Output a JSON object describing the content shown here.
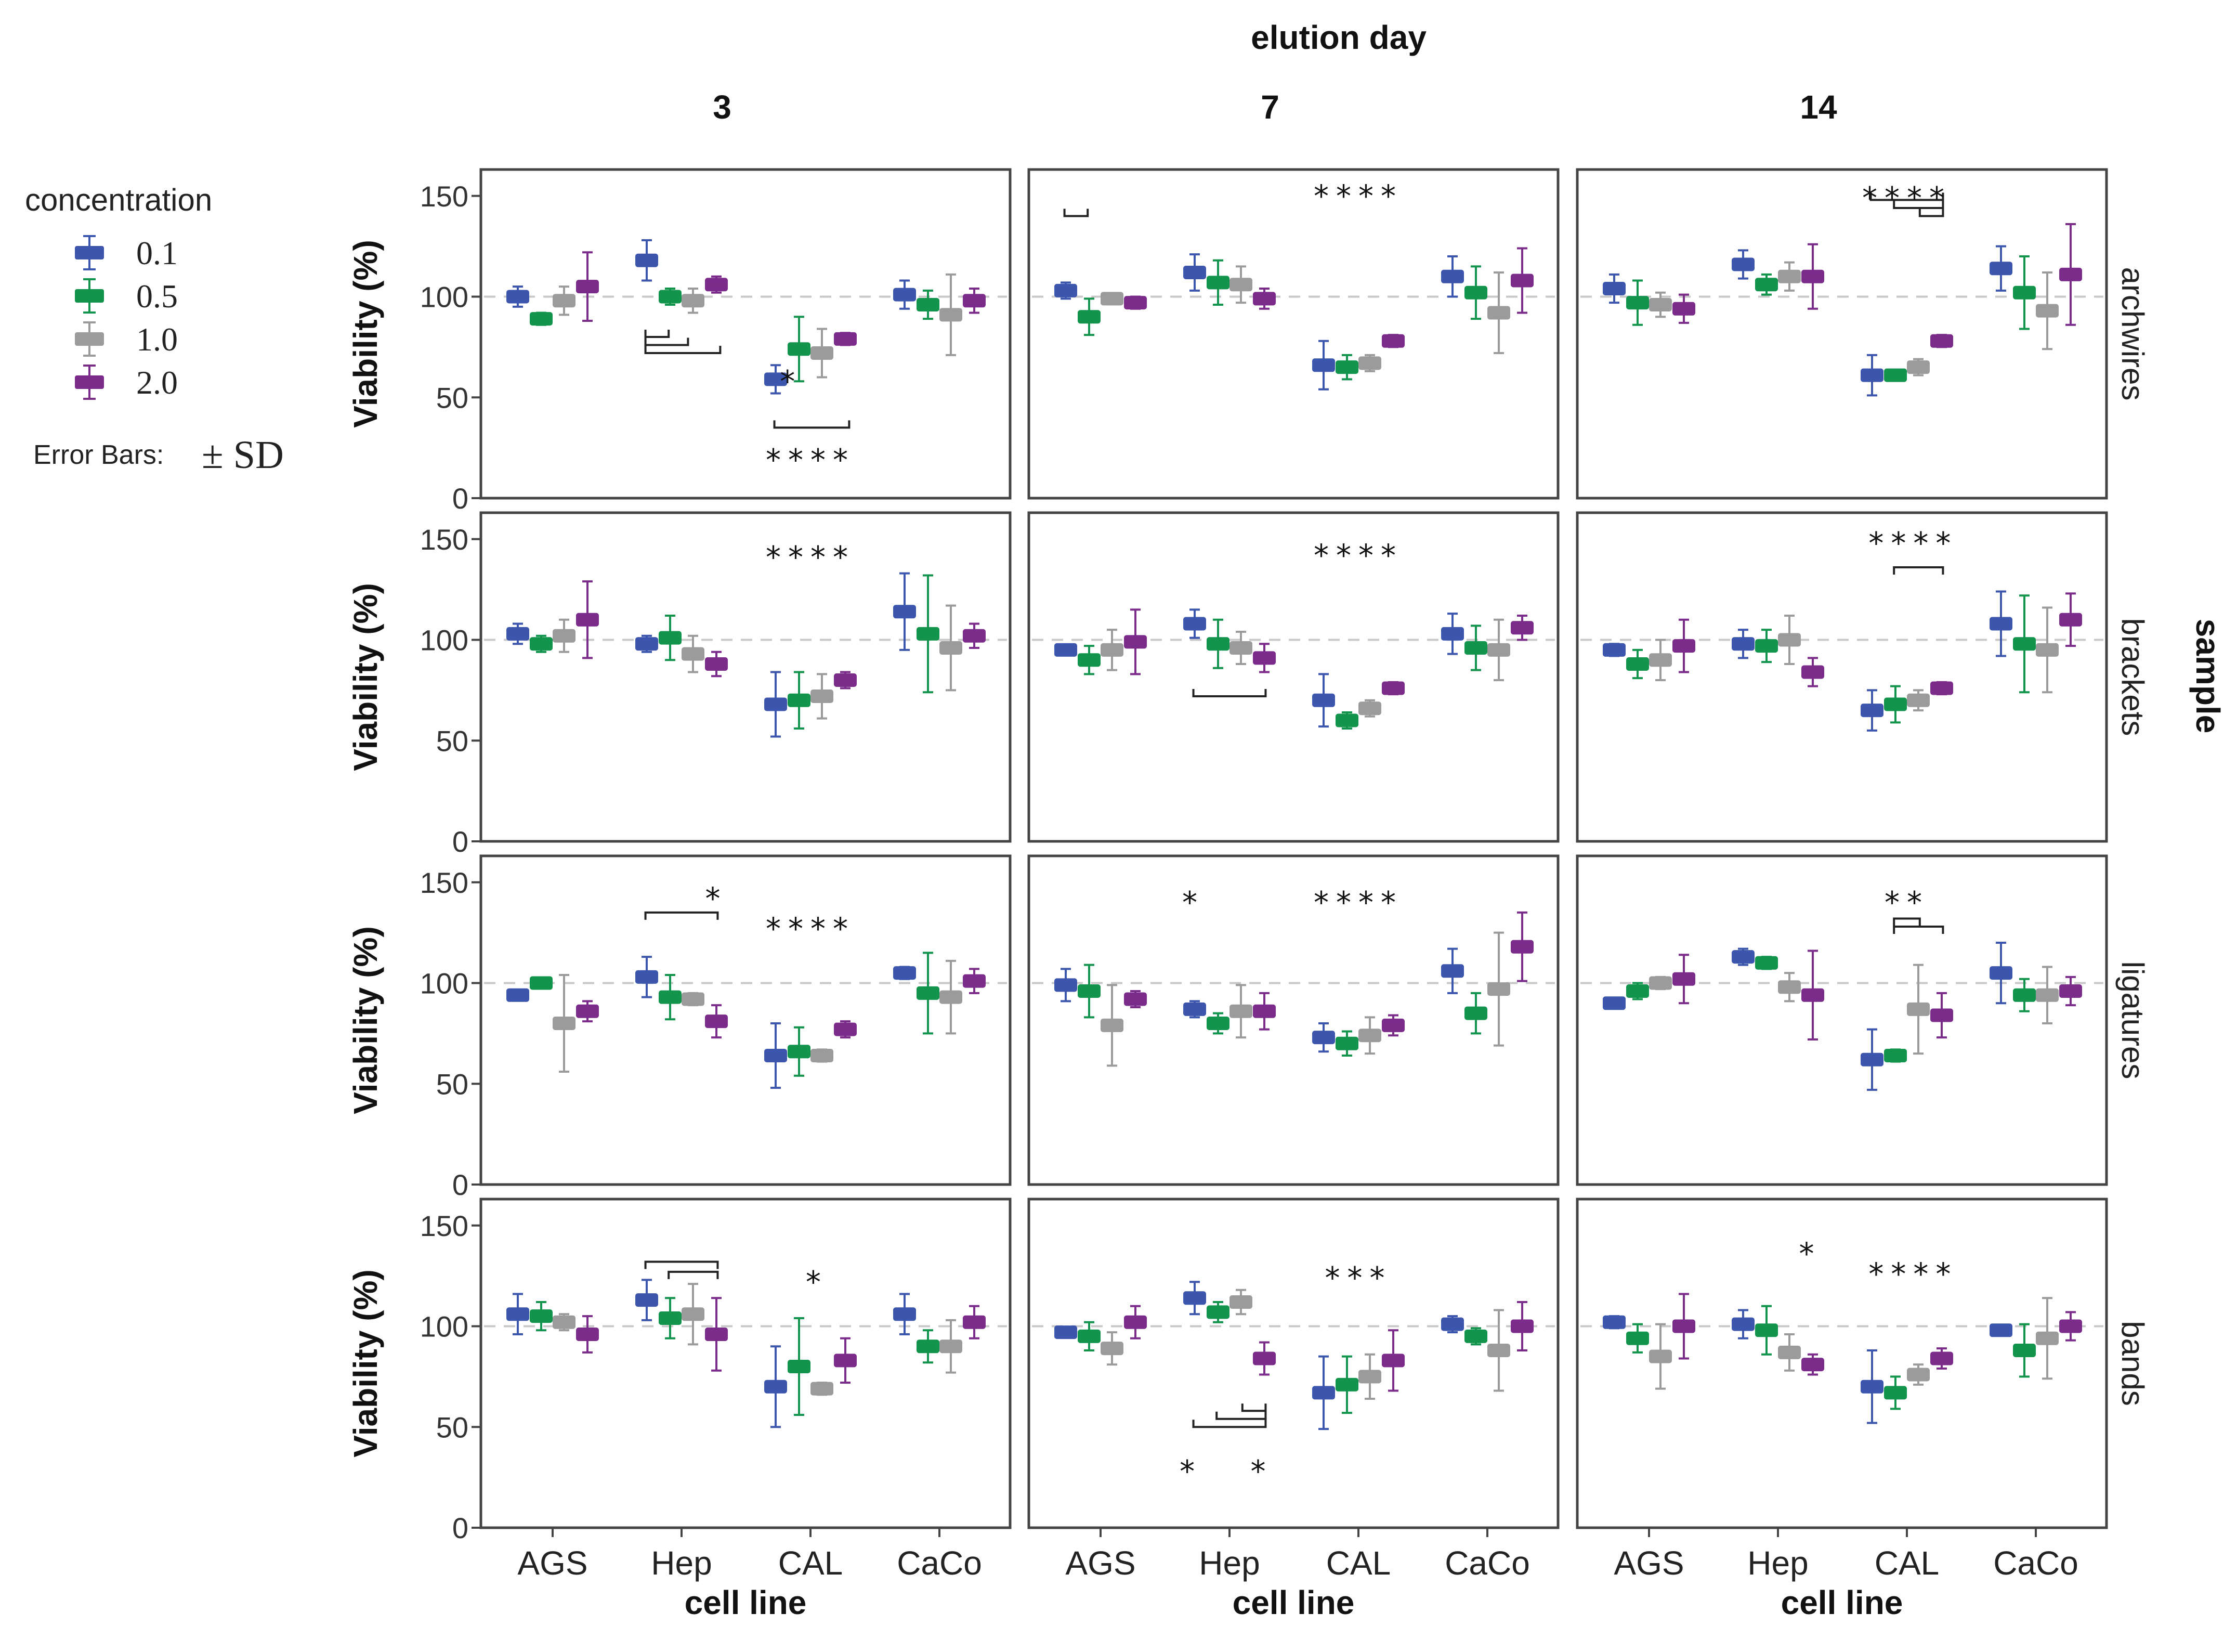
{
  "chart_data": {
    "type": "bar",
    "column_facet_title": "elution day",
    "row_facet_title": "sample",
    "columns": [
      "3",
      "7",
      "14"
    ],
    "rows": [
      "archwires",
      "brackets",
      "ligatures",
      "bands"
    ],
    "categories": [
      "AGS",
      "Hep",
      "CAL",
      "CaCo"
    ],
    "xlabel": "cell line",
    "ylabel": "Viability (%)",
    "ylim": [
      0,
      160
    ],
    "yticks": [
      0,
      50,
      100,
      150
    ],
    "reference_line": 100,
    "legend": {
      "title": "concentration",
      "placement": "left",
      "error_bars_label": "Error Bars:",
      "error_bars_value": "± SD",
      "series_colors": [
        "#3d56ad",
        "#12944d",
        "#9b9b9b",
        "#7b2b8a"
      ]
    },
    "series": [
      {
        "name": "0.1",
        "panels": [
          [
            [
              100,
              5
            ],
            [
              118,
              10
            ],
            [
              59,
              7
            ],
            [
              101,
              7
            ]
          ],
          [
            [
              103,
              4
            ],
            [
              112,
              9
            ],
            [
              66,
              12
            ],
            [
              110,
              10
            ]
          ],
          [
            [
              104,
              7
            ],
            [
              116,
              7
            ],
            [
              61,
              10
            ],
            [
              114,
              11
            ]
          ],
          [
            [
              103,
              5
            ],
            [
              98,
              4
            ],
            [
              68,
              16
            ],
            [
              114,
              19
            ]
          ],
          [
            [
              95,
              2
            ],
            [
              108,
              7
            ],
            [
              70,
              13
            ],
            [
              103,
              10
            ]
          ],
          [
            [
              95,
              3
            ],
            [
              98,
              7
            ],
            [
              65,
              10
            ],
            [
              108,
              16
            ]
          ],
          [
            [
              94,
              2
            ],
            [
              103,
              10
            ],
            [
              64,
              16
            ],
            [
              105,
              3
            ]
          ],
          [
            [
              99,
              8
            ],
            [
              87,
              4
            ],
            [
              73,
              7
            ],
            [
              106,
              11
            ]
          ],
          [
            [
              90,
              2
            ],
            [
              113,
              4
            ],
            [
              62,
              15
            ],
            [
              105,
              15
            ]
          ],
          [
            [
              106,
              10
            ],
            [
              113,
              10
            ],
            [
              70,
              20
            ],
            [
              106,
              10
            ]
          ],
          [
            [
              97,
              2
            ],
            [
              114,
              8
            ],
            [
              67,
              18
            ],
            [
              101,
              4
            ]
          ],
          [
            [
              102,
              3
            ],
            [
              101,
              7
            ],
            [
              70,
              18
            ],
            [
              98,
              2
            ]
          ]
        ]
      },
      {
        "name": "0.5",
        "panels": [
          [
            [
              89,
              3
            ],
            [
              100,
              4
            ],
            [
              74,
              16
            ],
            [
              96,
              7
            ]
          ],
          [
            [
              90,
              9
            ],
            [
              107,
              11
            ],
            [
              65,
              6
            ],
            [
              102,
              13
            ]
          ],
          [
            [
              97,
              11
            ],
            [
              106,
              5
            ],
            [
              61,
              2
            ],
            [
              102,
              18
            ]
          ],
          [
            [
              98,
              4
            ],
            [
              101,
              11
            ],
            [
              70,
              14
            ],
            [
              103,
              29
            ]
          ],
          [
            [
              90,
              7
            ],
            [
              98,
              12
            ],
            [
              60,
              4
            ],
            [
              96,
              11
            ]
          ],
          [
            [
              88,
              7
            ],
            [
              97,
              8
            ],
            [
              68,
              9
            ],
            [
              98,
              24
            ]
          ],
          [
            [
              100,
              2
            ],
            [
              93,
              11
            ],
            [
              66,
              12
            ],
            [
              95,
              20
            ]
          ],
          [
            [
              96,
              13
            ],
            [
              80,
              5
            ],
            [
              70,
              6
            ],
            [
              85,
              10
            ]
          ],
          [
            [
              96,
              4
            ],
            [
              110,
              3
            ],
            [
              64,
              3
            ],
            [
              94,
              8
            ]
          ],
          [
            [
              105,
              7
            ],
            [
              104,
              10
            ],
            [
              80,
              24
            ],
            [
              90,
              8
            ]
          ],
          [
            [
              95,
              7
            ],
            [
              107,
              5
            ],
            [
              71,
              14
            ],
            [
              95,
              4
            ]
          ],
          [
            [
              94,
              7
            ],
            [
              98,
              12
            ],
            [
              67,
              8
            ],
            [
              88,
              13
            ]
          ]
        ]
      },
      {
        "name": "1.0",
        "panels": [
          [
            [
              98,
              7
            ],
            [
              98,
              6
            ],
            [
              72,
              12
            ],
            [
              91,
              20
            ]
          ],
          [
            [
              99,
              2
            ],
            [
              106,
              9
            ],
            [
              67,
              4
            ],
            [
              92,
              20
            ]
          ],
          [
            [
              96,
              6
            ],
            [
              110,
              7
            ],
            [
              65,
              4
            ],
            [
              93,
              19
            ]
          ],
          [
            [
              102,
              8
            ],
            [
              93,
              9
            ],
            [
              72,
              11
            ],
            [
              96,
              21
            ]
          ],
          [
            [
              95,
              10
            ],
            [
              96,
              8
            ],
            [
              66,
              4
            ],
            [
              95,
              15
            ]
          ],
          [
            [
              90,
              10
            ],
            [
              100,
              12
            ],
            [
              70,
              5
            ],
            [
              95,
              21
            ]
          ],
          [
            [
              80,
              24
            ],
            [
              92,
              3
            ],
            [
              64,
              3
            ],
            [
              93,
              18
            ]
          ],
          [
            [
              79,
              20
            ],
            [
              86,
              13
            ],
            [
              74,
              9
            ],
            [
              97,
              28
            ]
          ],
          [
            [
              100,
              3
            ],
            [
              98,
              7
            ],
            [
              87,
              22
            ],
            [
              94,
              14
            ]
          ],
          [
            [
              102,
              4
            ],
            [
              106,
              15
            ],
            [
              69,
              3
            ],
            [
              90,
              13
            ]
          ],
          [
            [
              89,
              8
            ],
            [
              112,
              6
            ],
            [
              75,
              11
            ],
            [
              88,
              20
            ]
          ],
          [
            [
              85,
              16
            ],
            [
              87,
              9
            ],
            [
              76,
              5
            ],
            [
              94,
              20
            ]
          ]
        ]
      },
      {
        "name": "2.0",
        "panels": [
          [
            [
              105,
              17
            ],
            [
              106,
              4
            ],
            [
              79,
              3
            ],
            [
              98,
              6
            ]
          ],
          [
            [
              97,
              3
            ],
            [
              99,
              5
            ],
            [
              78,
              3
            ],
            [
              108,
              16
            ]
          ],
          [
            [
              94,
              7
            ],
            [
              110,
              16
            ],
            [
              78,
              3
            ],
            [
              111,
              25
            ]
          ],
          [
            [
              110,
              19
            ],
            [
              88,
              6
            ],
            [
              80,
              4
            ],
            [
              102,
              6
            ]
          ],
          [
            [
              99,
              16
            ],
            [
              91,
              7
            ],
            [
              76,
              3
            ],
            [
              106,
              6
            ]
          ],
          [
            [
              97,
              13
            ],
            [
              84,
              7
            ],
            [
              76,
              3
            ],
            [
              110,
              13
            ]
          ],
          [
            [
              86,
              5
            ],
            [
              81,
              8
            ],
            [
              77,
              4
            ],
            [
              101,
              6
            ]
          ],
          [
            [
              92,
              4
            ],
            [
              86,
              9
            ],
            [
              79,
              5
            ],
            [
              118,
              17
            ]
          ],
          [
            [
              102,
              12
            ],
            [
              94,
              22
            ],
            [
              84,
              11
            ],
            [
              96,
              7
            ]
          ],
          [
            [
              96,
              9
            ],
            [
              96,
              18
            ],
            [
              83,
              11
            ],
            [
              102,
              8
            ]
          ],
          [
            [
              102,
              8
            ],
            [
              84,
              8
            ],
            [
              83,
              15
            ],
            [
              100,
              12
            ]
          ],
          [
            [
              100,
              16
            ],
            [
              81,
              5
            ],
            [
              84,
              5
            ],
            [
              100,
              7
            ]
          ]
        ]
      }
    ],
    "annotations": [
      {
        "panel": 0,
        "text": "*",
        "x": 1.85,
        "y": 58
      },
      {
        "panel": 0,
        "text": "****",
        "x": 2.0,
        "y": 19
      },
      {
        "panel": 1,
        "text": "****",
        "x": 2.0,
        "y": 150
      },
      {
        "panel": 2,
        "text": "****",
        "x": 2.0,
        "y": 149
      },
      {
        "panel": 3,
        "text": "****",
        "x": 2.0,
        "y": 141
      },
      {
        "panel": 4,
        "text": "****",
        "x": 2.0,
        "y": 142
      },
      {
        "panel": 5,
        "text": "****",
        "x": 2.05,
        "y": 148
      },
      {
        "panel": 6,
        "text": "*",
        "x": 1.27,
        "y": 142
      },
      {
        "panel": 6,
        "text": "****",
        "x": 2.0,
        "y": 127
      },
      {
        "panel": 7,
        "text": "*",
        "x": 0.72,
        "y": 140
      },
      {
        "panel": 7,
        "text": "****",
        "x": 2.0,
        "y": 140
      },
      {
        "panel": 8,
        "text": "**",
        "x": 2.0,
        "y": 140
      },
      {
        "panel": 9,
        "text": "*",
        "x": 2.05,
        "y": 122
      },
      {
        "panel": 10,
        "text": "***",
        "x": 2.0,
        "y": 124
      },
      {
        "panel": 10,
        "text": "*",
        "x": 0.7,
        "y": 28
      },
      {
        "panel": 10,
        "text": "*",
        "x": 1.25,
        "y": 28
      },
      {
        "panel": 11,
        "text": "*",
        "x": 1.25,
        "y": 136
      },
      {
        "panel": 11,
        "text": "****",
        "x": 2.05,
        "y": 126
      }
    ],
    "brackets": [
      {
        "panel": 0,
        "x1": 0.72,
        "x2": 0.9,
        "y": 80,
        "dir": "down"
      },
      {
        "panel": 0,
        "x1": 0.72,
        "x2": 1.05,
        "y": 76,
        "dir": "down"
      },
      {
        "panel": 0,
        "x1": 0.72,
        "x2": 1.3,
        "y": 72,
        "dir": "down"
      },
      {
        "panel": 0,
        "x1": 1.72,
        "x2": 2.3,
        "y": 35,
        "dir": "down"
      },
      {
        "panel": 1,
        "x1": -0.28,
        "x2": -0.1,
        "y": 140,
        "dir": "down"
      },
      {
        "panel": 2,
        "x1": 1.72,
        "x2": 2.28,
        "y": 148,
        "dir": "down"
      },
      {
        "panel": 2,
        "x1": 1.9,
        "x2": 2.28,
        "y": 144,
        "dir": "down"
      },
      {
        "panel": 2,
        "x1": 2.1,
        "x2": 2.28,
        "y": 140,
        "dir": "down"
      },
      {
        "panel": 4,
        "x1": 0.72,
        "x2": 1.28,
        "y": 72,
        "dir": "down"
      },
      {
        "panel": 5,
        "x1": 1.9,
        "x2": 2.28,
        "y": 136,
        "dir": "up"
      },
      {
        "panel": 6,
        "x1": 0.72,
        "x2": 1.28,
        "y": 135,
        "dir": "up"
      },
      {
        "panel": 8,
        "x1": 1.9,
        "x2": 2.1,
        "y": 132,
        "dir": "up"
      },
      {
        "panel": 8,
        "x1": 1.9,
        "x2": 2.28,
        "y": 128,
        "dir": "up"
      },
      {
        "panel": 9,
        "x1": 0.72,
        "x2": 1.28,
        "y": 132,
        "dir": "up"
      },
      {
        "panel": 9,
        "x1": 0.9,
        "x2": 1.28,
        "y": 127,
        "dir": "up"
      },
      {
        "panel": 10,
        "x1": 0.72,
        "x2": 1.28,
        "y": 50,
        "dir": "down"
      },
      {
        "panel": 10,
        "x1": 0.9,
        "x2": 1.28,
        "y": 54,
        "dir": "down"
      },
      {
        "panel": 10,
        "x1": 1.1,
        "x2": 1.28,
        "y": 58,
        "dir": "down"
      }
    ]
  }
}
